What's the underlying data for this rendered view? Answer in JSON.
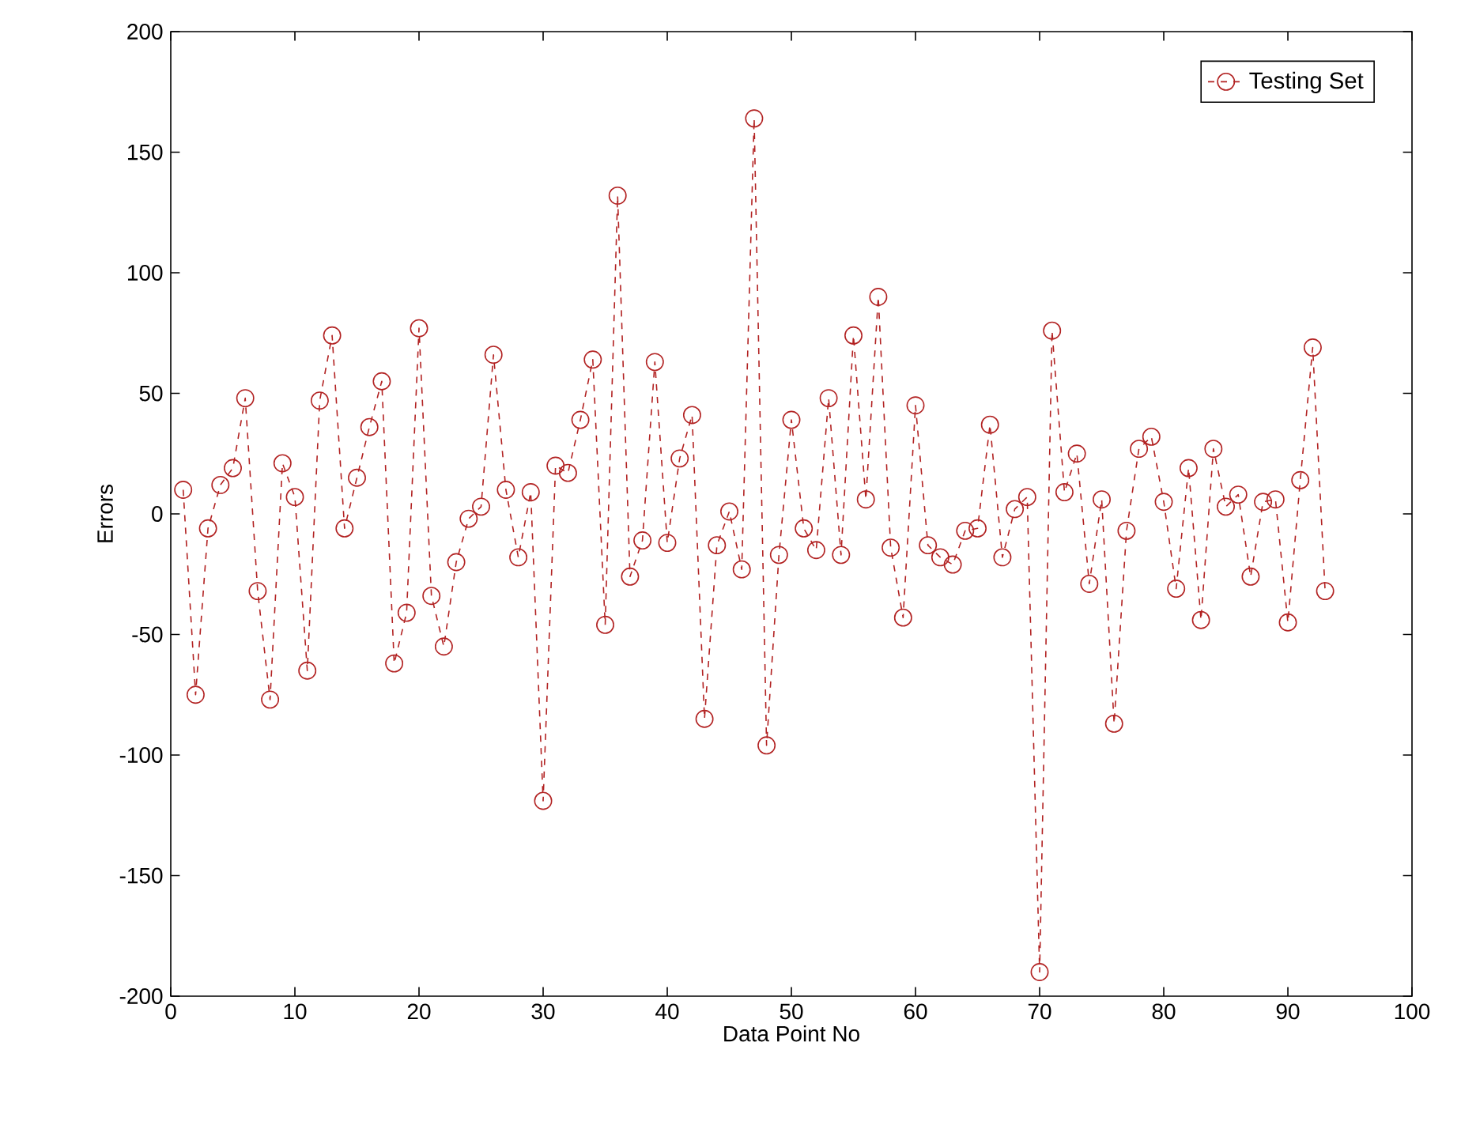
{
  "chart_data": {
    "type": "line",
    "xlabel": "Data Point No",
    "ylabel": "Errors",
    "x": [
      1,
      2,
      3,
      4,
      5,
      6,
      7,
      8,
      9,
      10,
      11,
      12,
      13,
      14,
      15,
      16,
      17,
      18,
      19,
      20,
      21,
      22,
      23,
      24,
      25,
      26,
      27,
      28,
      29,
      30,
      31,
      32,
      33,
      34,
      35,
      36,
      37,
      38,
      39,
      40,
      41,
      42,
      43,
      44,
      45,
      46,
      47,
      48,
      49,
      50,
      51,
      52,
      53,
      54,
      55,
      56,
      57,
      58,
      59,
      60,
      61,
      62,
      63,
      64,
      65,
      66,
      67,
      68,
      69,
      70,
      71,
      72,
      73,
      74,
      75,
      76,
      77,
      78,
      79,
      80,
      81,
      82,
      83,
      84,
      85,
      86,
      87,
      88,
      89,
      90,
      91,
      92,
      93
    ],
    "series": [
      {
        "name": "Testing Set",
        "color": "#b22222",
        "values": [
          10,
          -75,
          -6,
          12,
          19,
          48,
          -32,
          -77,
          21,
          7,
          -65,
          47,
          74,
          -6,
          15,
          36,
          55,
          -62,
          -41,
          77,
          -34,
          -55,
          -20,
          -2,
          3,
          66,
          10,
          -18,
          9,
          -119,
          20,
          17,
          39,
          64,
          -46,
          132,
          -26,
          -11,
          63,
          -12,
          23,
          41,
          -85,
          -13,
          1,
          -23,
          164,
          -96,
          -17,
          39,
          -6,
          -15,
          48,
          -17,
          74,
          6,
          90,
          -14,
          -43,
          45,
          -13,
          -18,
          -21,
          -7,
          -6,
          37,
          -18,
          2,
          7,
          -190,
          76,
          9,
          25,
          -29,
          6,
          -87,
          -7,
          27,
          32,
          5,
          -31,
          19,
          -44,
          27,
          3,
          8,
          -26,
          5,
          6,
          -45,
          14,
          69,
          -32
        ]
      }
    ],
    "xlim": [
      0,
      100
    ],
    "ylim": [
      -200,
      200
    ],
    "xticks": [
      0,
      10,
      20,
      30,
      40,
      50,
      60,
      70,
      80,
      90,
      100
    ],
    "yticks": [
      -200,
      -150,
      -100,
      -50,
      0,
      50,
      100,
      150,
      200
    ],
    "legend": "top right",
    "marker": "circle",
    "line_style": "dashed",
    "grid": false
  }
}
